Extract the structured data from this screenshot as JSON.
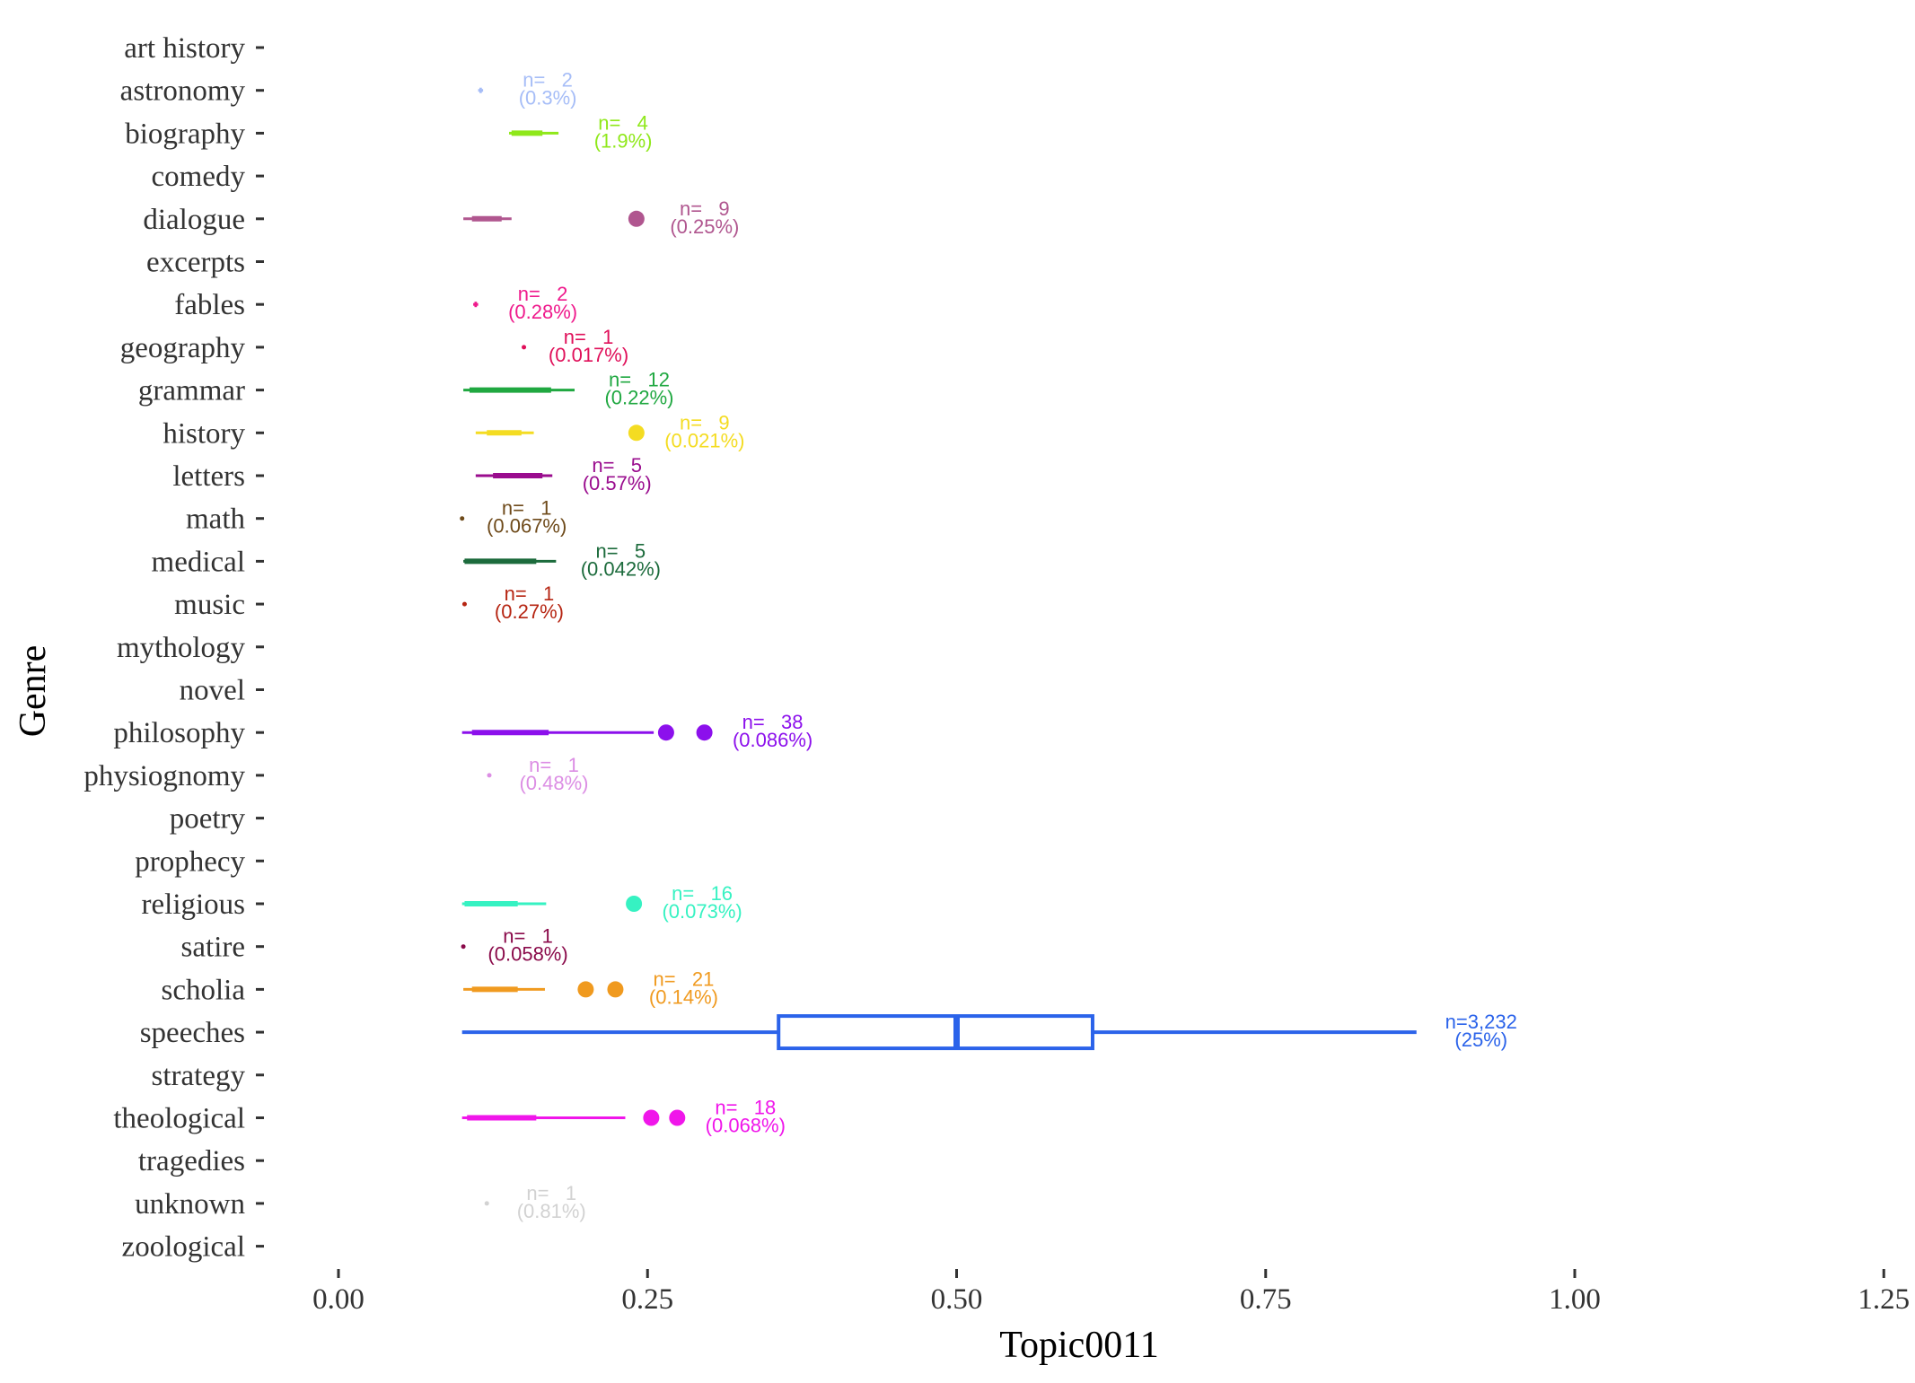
{
  "chart_data": {
    "type": "boxplot",
    "orientation": "horizontal",
    "title": "",
    "xlabel": "Topic0011",
    "ylabel": "Genre",
    "xlim": [
      -0.06,
      1.25
    ],
    "x_ticks": [
      0,
      0.25,
      0.5,
      0.75,
      1,
      1.25
    ],
    "x_tick_labels": [
      "0.00",
      "0.25",
      "0.50",
      "0.75",
      "1.00",
      "1.25"
    ],
    "grid": false,
    "legend": "none",
    "categories": [
      "art history",
      "astronomy",
      "biography",
      "comedy",
      "dialogue",
      "excerpts",
      "fables",
      "geography",
      "grammar",
      "history",
      "letters",
      "math",
      "medical",
      "music",
      "mythology",
      "novel",
      "philosophy",
      "physiognomy",
      "poetry",
      "prophecy",
      "religious",
      "satire",
      "scholia",
      "speeches",
      "strategy",
      "theological",
      "tragedies",
      "unknown",
      "zoological"
    ],
    "series": [
      {
        "category": "astronomy",
        "color": "#a6bdf7",
        "min": 0.113,
        "q1": 0.114,
        "median": 0.115,
        "q3": 0.116,
        "max": 0.117,
        "outliers": [],
        "n_label": "n=   2",
        "pct_label": "(0.3%)"
      },
      {
        "category": "biography",
        "color": "#8fe81a",
        "min": 0.138,
        "q1": 0.14,
        "median": 0.15,
        "q3": 0.165,
        "max": 0.178,
        "outliers": [],
        "n_label": "n=   4",
        "pct_label": "(1.9%)"
      },
      {
        "category": "dialogue",
        "color": "#b0568f",
        "min": 0.101,
        "q1": 0.108,
        "median": 0.12,
        "q3": 0.132,
        "max": 0.14,
        "outliers": [
          0.241
        ],
        "n_label": "n=   9",
        "pct_label": "(0.25%)"
      },
      {
        "category": "fables",
        "color": "#ef1a8c",
        "min": 0.109,
        "q1": 0.11,
        "median": 0.111,
        "q3": 0.112,
        "max": 0.113,
        "outliers": [],
        "n_label": "n=   2",
        "pct_label": "(0.28%)"
      },
      {
        "category": "geography",
        "color": "#e0105a",
        "min": 0.15,
        "q1": 0.15,
        "median": 0.15,
        "q3": 0.15,
        "max": 0.15,
        "outliers": [],
        "n_label": "n=   1",
        "pct_label": "(0.017%)"
      },
      {
        "category": "grammar",
        "color": "#20a841",
        "min": 0.101,
        "q1": 0.106,
        "median": 0.13,
        "q3": 0.172,
        "max": 0.191,
        "outliers": [],
        "n_label": "n=   12",
        "pct_label": "(0.22%)"
      },
      {
        "category": "history",
        "color": "#f4dc22",
        "min": 0.111,
        "q1": 0.12,
        "median": 0.135,
        "q3": 0.148,
        "max": 0.158,
        "outliers": [
          0.241
        ],
        "n_label": "n=   9",
        "pct_label": "(0.021%)"
      },
      {
        "category": "letters",
        "color": "#9a0c8e",
        "min": 0.111,
        "q1": 0.125,
        "median": 0.143,
        "q3": 0.165,
        "max": 0.173,
        "outliers": [],
        "n_label": "n=   5",
        "pct_label": "(0.57%)"
      },
      {
        "category": "math",
        "color": "#6e4a1a",
        "min": 0.1,
        "q1": 0.1,
        "median": 0.1,
        "q3": 0.1,
        "max": 0.1,
        "outliers": [],
        "n_label": "n=   1",
        "pct_label": "(0.067%)"
      },
      {
        "category": "medical",
        "color": "#1c6b3c",
        "min": 0.101,
        "q1": 0.102,
        "median": 0.135,
        "q3": 0.16,
        "max": 0.176,
        "outliers": [],
        "n_label": "n=   5",
        "pct_label": "(0.042%)"
      },
      {
        "category": "music",
        "color": "#b62512",
        "min": 0.102,
        "q1": 0.102,
        "median": 0.102,
        "q3": 0.102,
        "max": 0.102,
        "outliers": [],
        "n_label": "n=   1",
        "pct_label": "(0.27%)"
      },
      {
        "category": "philosophy",
        "color": "#8c10ec",
        "min": 0.1,
        "q1": 0.108,
        "median": 0.13,
        "q3": 0.17,
        "max": 0.255,
        "outliers": [
          0.265,
          0.296
        ],
        "n_label": "n=   38",
        "pct_label": "(0.086%)"
      },
      {
        "category": "physiognomy",
        "color": "#dc8ee4",
        "min": 0.122,
        "q1": 0.122,
        "median": 0.122,
        "q3": 0.122,
        "max": 0.122,
        "outliers": [],
        "n_label": "n=   1",
        "pct_label": "(0.48%)"
      },
      {
        "category": "religious",
        "color": "#36f2c2",
        "min": 0.1,
        "q1": 0.102,
        "median": 0.125,
        "q3": 0.145,
        "max": 0.168,
        "outliers": [
          0.239
        ],
        "n_label": "n=   16",
        "pct_label": "(0.073%)"
      },
      {
        "category": "satire",
        "color": "#8a0a4a",
        "min": 0.101,
        "q1": 0.101,
        "median": 0.101,
        "q3": 0.101,
        "max": 0.101,
        "outliers": [],
        "n_label": "n=   1",
        "pct_label": "(0.058%)"
      },
      {
        "category": "scholia",
        "color": "#f09a1f",
        "min": 0.101,
        "q1": 0.108,
        "median": 0.125,
        "q3": 0.145,
        "max": 0.167,
        "outliers": [
          0.2,
          0.224
        ],
        "n_label": "n=   21",
        "pct_label": "(0.14%)"
      },
      {
        "category": "speeches",
        "color": "#2b63ea",
        "min": 0.1,
        "q1": 0.356,
        "median": 0.5,
        "q3": 0.61,
        "max": 0.872,
        "outliers": [],
        "n_label": "n=3,232",
        "pct_label": "(25%)"
      },
      {
        "category": "theological",
        "color": "#f016ea",
        "min": 0.1,
        "q1": 0.104,
        "median": 0.13,
        "q3": 0.16,
        "max": 0.232,
        "outliers": [
          0.253,
          0.274
        ],
        "n_label": "n=   18",
        "pct_label": "(0.068%)"
      },
      {
        "category": "unknown",
        "color": "#d2d2d2",
        "min": 0.12,
        "q1": 0.12,
        "median": 0.12,
        "q3": 0.12,
        "max": 0.12,
        "outliers": [],
        "n_label": "n=   1",
        "pct_label": "(0.81%)"
      }
    ]
  }
}
